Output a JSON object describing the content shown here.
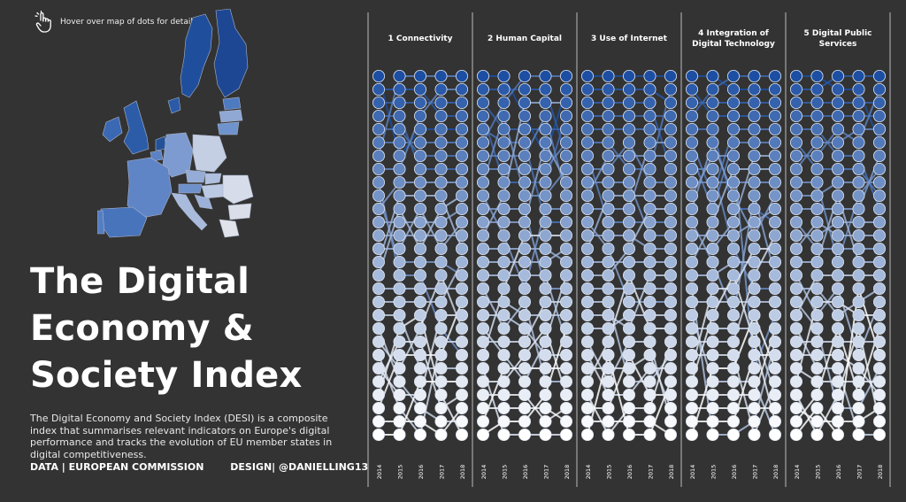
{
  "hint": {
    "icon": "pointer-hand-icon",
    "text": "Hover over map of dots for details"
  },
  "title_lines": [
    "The Digital",
    "Economy &",
    "Society Index"
  ],
  "description": "The Digital Economy and Society Index (DESI) is a composite index that summarises relevant indicators on Europe's digital performance and tracks the evolution of EU member states in digital competitiveness.",
  "credits": {
    "data": "DATA | EUROPEAN COMMISSION",
    "design": "DESIGN| @DANIELLING13"
  },
  "colors": {
    "background": "#333333",
    "rank_top": "#1c4fa3",
    "rank_bottom": "#ffffff",
    "divider": "#bbbbbb"
  },
  "chart_data": {
    "type": "scatter",
    "description_of_encoding": "bump chart: each dot is an EU member state's rank per year within a DESI dimension; dots colored by rank",
    "panels": [
      {
        "title": "1 Connectivity"
      },
      {
        "title": "2 Human Capital"
      },
      {
        "title": "3 Use of Internet"
      },
      {
        "title": "4 Integration of Digital Technology"
      },
      {
        "title": "5 Digital Public Services"
      }
    ],
    "years": [
      "2014",
      "2015",
      "2016",
      "2017",
      "2018"
    ],
    "rank_count": 28
  }
}
